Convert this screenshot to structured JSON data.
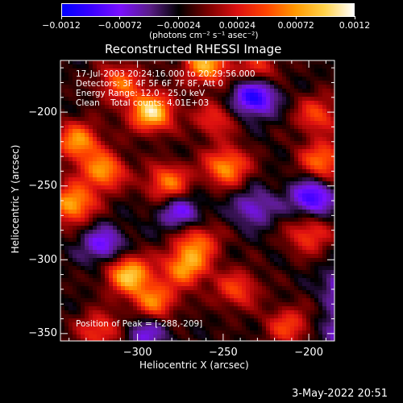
{
  "chart_data": {
    "type": "heatmap",
    "title": "Reconstructed RHESSI Image",
    "xlabel": "Heliocentric X (arcsec)",
    "ylabel": "Heliocentric Y (arcsec)",
    "xlim": [
      -345,
      -185
    ],
    "ylim": [
      -355,
      -165
    ],
    "x_ticks": [
      -300,
      -250,
      -200
    ],
    "x_tick_labels": [
      "−300",
      "−250",
      "−200"
    ],
    "y_ticks": [
      -350,
      -300,
      -250,
      -200
    ],
    "y_tick_labels": [
      "−350",
      "−300",
      "−250",
      "−200"
    ],
    "colorbar": {
      "range": [
        -0.0012,
        0.0012
      ],
      "ticks": [
        -0.0012,
        -0.00072,
        -0.00024,
        0.00024,
        0.00072,
        0.0012
      ],
      "tick_labels": [
        "−0.0012",
        "−0.00072",
        "−0.00024",
        "0.00024",
        "0.00072",
        "0.0012"
      ],
      "unit_label": "(photons cm⁻² s⁻¹ asec⁻²)",
      "colors": [
        "#0000ff",
        "#3a00ff",
        "#7a10ff",
        "#5a1d88",
        "#000000",
        "#7a0000",
        "#dd1010",
        "#ff4400",
        "#ff9900",
        "#ffd24a",
        "#ffffff"
      ]
    },
    "annotations": [
      "17-Jul-2003 20:24:16.000 to 20:29:56.000",
      "Detectors: 3F 4F 5F 6F 7F 8F, Att 0",
      "Energy Range: 12.0 - 25.0 keV",
      "Clean    Total counts: 4.01E+03"
    ],
    "peak_label": "Position of Peak = [-288,-209]",
    "peak_position": [
      -288,
      -209
    ],
    "hot_spots": [
      {
        "x": -292,
        "y": -200,
        "value": 0.0012
      },
      {
        "x": -260,
        "y": -168,
        "value": 0.001
      },
      {
        "x": -335,
        "y": -220,
        "value": 0.0009
      },
      {
        "x": -320,
        "y": -240,
        "value": 0.0009
      },
      {
        "x": -282,
        "y": -248,
        "value": 0.0008
      },
      {
        "x": -248,
        "y": -237,
        "value": 0.0009
      },
      {
        "x": -338,
        "y": -262,
        "value": 0.001
      },
      {
        "x": -305,
        "y": -310,
        "value": 0.0011
      },
      {
        "x": -290,
        "y": -328,
        "value": 0.0008
      },
      {
        "x": -272,
        "y": -305,
        "value": 0.0009
      },
      {
        "x": -242,
        "y": -320,
        "value": 0.0006
      },
      {
        "x": -265,
        "y": -288,
        "value": 0.0007
      },
      {
        "x": -200,
        "y": -283,
        "value": 0.0006
      },
      {
        "x": -192,
        "y": -233,
        "value": 0.0008
      },
      {
        "x": -195,
        "y": -202,
        "value": 0.0006
      },
      {
        "x": -230,
        "y": -170,
        "value": 0.0005
      },
      {
        "x": -310,
        "y": -180,
        "value": 0.0007
      },
      {
        "x": -212,
        "y": -345,
        "value": 0.0006
      },
      {
        "x": -322,
        "y": -348,
        "value": 0.0006
      },
      {
        "x": -255,
        "y": -205,
        "value": 0.0005
      }
    ],
    "cold_spots": [
      {
        "x": -232,
        "y": -190,
        "value": -0.0009
      },
      {
        "x": -198,
        "y": -258,
        "value": -0.0008
      },
      {
        "x": -178,
        "y": -318,
        "value": -0.0007
      },
      {
        "x": -275,
        "y": -268,
        "value": -0.0006
      },
      {
        "x": -320,
        "y": -290,
        "value": -0.0006
      },
      {
        "x": -295,
        "y": -350,
        "value": -0.0005
      },
      {
        "x": -232,
        "y": -265,
        "value": -0.0005
      },
      {
        "x": -180,
        "y": -348,
        "value": -0.0006
      }
    ]
  },
  "footer": {
    "date": "3-May-2022 20:51"
  }
}
